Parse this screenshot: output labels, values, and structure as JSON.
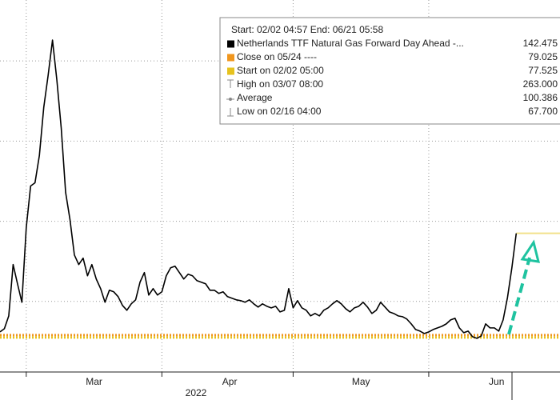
{
  "chart_data": {
    "type": "line",
    "x": [
      "2022-02-23",
      "2022-02-24",
      "2022-02-25",
      "2022-02-26",
      "2022-02-27",
      "2022-02-28",
      "2022-03-01",
      "2022-03-02",
      "2022-03-03",
      "2022-03-04",
      "2022-03-05",
      "2022-03-06",
      "2022-03-07",
      "2022-03-08",
      "2022-03-09",
      "2022-03-10",
      "2022-03-11",
      "2022-03-12",
      "2022-03-13",
      "2022-03-14",
      "2022-03-15",
      "2022-03-16",
      "2022-03-17",
      "2022-03-18",
      "2022-03-19",
      "2022-03-20",
      "2022-03-21",
      "2022-03-22",
      "2022-03-23",
      "2022-03-24",
      "2022-03-25",
      "2022-03-26",
      "2022-03-27",
      "2022-03-28",
      "2022-03-29",
      "2022-03-30",
      "2022-03-31",
      "2022-04-01",
      "2022-04-02",
      "2022-04-03",
      "2022-04-04",
      "2022-04-05",
      "2022-04-06",
      "2022-04-07",
      "2022-04-08",
      "2022-04-09",
      "2022-04-10",
      "2022-04-11",
      "2022-04-12",
      "2022-04-13",
      "2022-04-14",
      "2022-04-15",
      "2022-04-16",
      "2022-04-17",
      "2022-04-18",
      "2022-04-19",
      "2022-04-20",
      "2022-04-21",
      "2022-04-22",
      "2022-04-23",
      "2022-04-24",
      "2022-04-25",
      "2022-04-26",
      "2022-04-27",
      "2022-04-28",
      "2022-04-29",
      "2022-04-30",
      "2022-05-01",
      "2022-05-02",
      "2022-05-03",
      "2022-05-04",
      "2022-05-05",
      "2022-05-06",
      "2022-05-07",
      "2022-05-08",
      "2022-05-09",
      "2022-05-10",
      "2022-05-11",
      "2022-05-12",
      "2022-05-13",
      "2022-05-14",
      "2022-05-15",
      "2022-05-16",
      "2022-05-17",
      "2022-05-18",
      "2022-05-19",
      "2022-05-20",
      "2022-05-21",
      "2022-05-22",
      "2022-05-23",
      "2022-05-24",
      "2022-05-25",
      "2022-05-26",
      "2022-05-27",
      "2022-05-28",
      "2022-05-29",
      "2022-05-30",
      "2022-05-31",
      "2022-06-01",
      "2022-06-02",
      "2022-06-03",
      "2022-06-04",
      "2022-06-05",
      "2022-06-06",
      "2022-06-07",
      "2022-06-08",
      "2022-06-09",
      "2022-06-10",
      "2022-06-11",
      "2022-06-12",
      "2022-06-13",
      "2022-06-14",
      "2022-06-15",
      "2022-06-16",
      "2022-06-17",
      "2022-06-18",
      "2022-06-19",
      "2022-06-20",
      "2022-06-21"
    ],
    "series": [
      {
        "name": "Netherlands TTF Natural Gas Forward Day Ahead -...",
        "color": "#000000",
        "last_value": 142.475,
        "last_value_color": "#f2e08a",
        "values": [
          81,
          83,
          91,
          123,
          111,
          99.5,
          146,
          172,
          174,
          191,
          221,
          241,
          263,
          238,
          208,
          168,
          151,
          129,
          123,
          127,
          116,
          123,
          114,
          108,
          99.5,
          107,
          106,
          103,
          97.5,
          94.5,
          98.5,
          101,
          112,
          118,
          104,
          108,
          104,
          106,
          116,
          121,
          122,
          118,
          114,
          117,
          116,
          113,
          112,
          111,
          107,
          107,
          105,
          106,
          103,
          102,
          101,
          100.5,
          99.5,
          101,
          98.5,
          96.5,
          98.5,
          97,
          96,
          97,
          93.5,
          94.5,
          108,
          96,
          100.5,
          96,
          94.5,
          91,
          92.5,
          91,
          94.5,
          96,
          98.5,
          100.5,
          98.5,
          95.5,
          93.5,
          96,
          97,
          99.5,
          96.5,
          92.5,
          94.5,
          99.5,
          96.5,
          93.5,
          92.5,
          91,
          90.5,
          89,
          86,
          82.5,
          81.5,
          80,
          81,
          82.5,
          83.5,
          84.5,
          86,
          88.5,
          89.5,
          83.5,
          80.5,
          81.5,
          78,
          77,
          78.5,
          86,
          83.5,
          83.5,
          81.5,
          88.5,
          102.5,
          121,
          142.475
        ]
      }
    ],
    "stats": [
      {
        "name": "Close on 05/24 ----",
        "value": 79.025,
        "value_label": "79.025",
        "color": "#f0961e"
      },
      {
        "name": "Start on 02/02 05:00",
        "value": 77.525,
        "value_label": "77.525",
        "color": "#e6c21e"
      },
      {
        "name": "High on 03/07 08:00",
        "value": 263,
        "value_label": "263.000"
      },
      {
        "name": "Average",
        "value": 100.386,
        "value_label": "100.386"
      },
      {
        "name": "Low on 02/16 04:00",
        "value": 67.7,
        "value_label": "67.700"
      }
    ],
    "legend_header": "Start: 02/02 04:57 End: 06/21 05:58",
    "xlim": [
      "2022-02-23",
      "2022-07-01"
    ],
    "xticks": [
      {
        "value": "2022-03-01",
        "label": "Mar"
      },
      {
        "value": "2022-04-01",
        "label": "Apr"
      },
      {
        "value": "2022-05-01",
        "label": "May"
      },
      {
        "value": "2022-06-01",
        "label": "Jun"
      }
    ],
    "x_label": "2022",
    "ylim": [
      56,
      288
    ],
    "yticks": [
      100,
      150,
      200,
      250
    ],
    "grid": true
  }
}
